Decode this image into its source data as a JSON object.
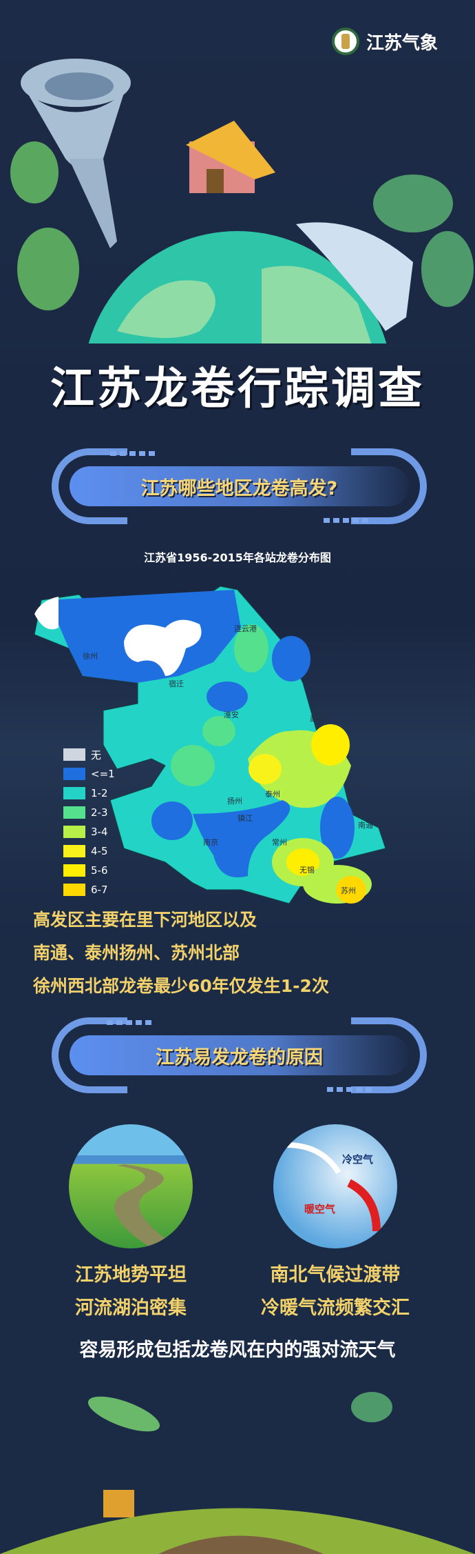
{
  "header": {
    "logo_text": "江苏气象",
    "title": "江苏龙卷行踪调查"
  },
  "section1": {
    "banner": "江苏哪些地区龙卷高发?",
    "map_title": "江苏省1956-2015年各站龙卷分布图",
    "cities": [
      "连云港",
      "徐州",
      "宿迁",
      "淮安",
      "盐城",
      "扬州",
      "泰州",
      "镇江",
      "南京",
      "常州",
      "无锡",
      "南通",
      "苏州"
    ],
    "legend": [
      {
        "label": "无",
        "color": "#d0d6e0"
      },
      {
        "label": "<=1",
        "color": "#1f6fe0"
      },
      {
        "label": "1-2",
        "color": "#22d3c6"
      },
      {
        "label": "2-3",
        "color": "#54e08c"
      },
      {
        "label": "3-4",
        "color": "#b8f04a"
      },
      {
        "label": "4-5",
        "color": "#f8f21a"
      },
      {
        "label": "5-6",
        "color": "#ffee00"
      },
      {
        "label": "6-7",
        "color": "#ffd800"
      }
    ],
    "lines": [
      "高发区主要在里下河地区以及",
      "南通、泰州扬州、苏州北部",
      "徐州西北部龙卷最少60年仅发生1-2次"
    ]
  },
  "section2": {
    "banner": "江苏易发龙卷的原因",
    "cold_air": "冷空气",
    "warm_air": "暖空气",
    "left_caption": [
      "江苏地势平坦",
      "河流湖泊密集"
    ],
    "right_caption": [
      "南北气候过渡带",
      "冷暖气流频繁交汇"
    ],
    "conclusion": "容易形成包括龙卷风在内的强对流天气"
  }
}
